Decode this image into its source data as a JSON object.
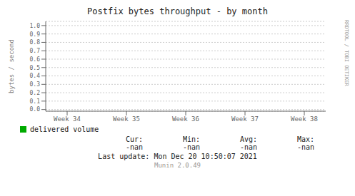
{
  "chart_data": {
    "type": "line",
    "title": "Postfix bytes throughput - by month",
    "y_label": "bytes / second",
    "categories": [
      "Week 34",
      "Week 35",
      "Week 36",
      "Week 37",
      "Week 38"
    ],
    "series": [
      {
        "name": "delivered volume",
        "color": "#00aa00",
        "values": [
          null,
          null,
          null,
          null,
          null
        ]
      }
    ],
    "ylim": [
      -0.02,
      1.05
    ],
    "yticks": [
      {
        "value": 0.0,
        "label": "0.0"
      },
      0.1,
      0.2,
      0.3,
      0.4,
      0.5,
      0.6,
      0.7,
      0.8,
      0.9,
      {
        "value": 1.0,
        "label": "1.0"
      }
    ],
    "grid": true,
    "legend": "lower left",
    "annotations": [
      "RRDTOOL / TOBI OETIKER",
      "Cur:",
      "Min:",
      "Avg:",
      "Max:",
      "-nan",
      "-nan",
      "-nan",
      "-nan",
      "Last update: Mon Dec 20 10:50:07 2021",
      "Munin 2.0.49"
    ]
  }
}
